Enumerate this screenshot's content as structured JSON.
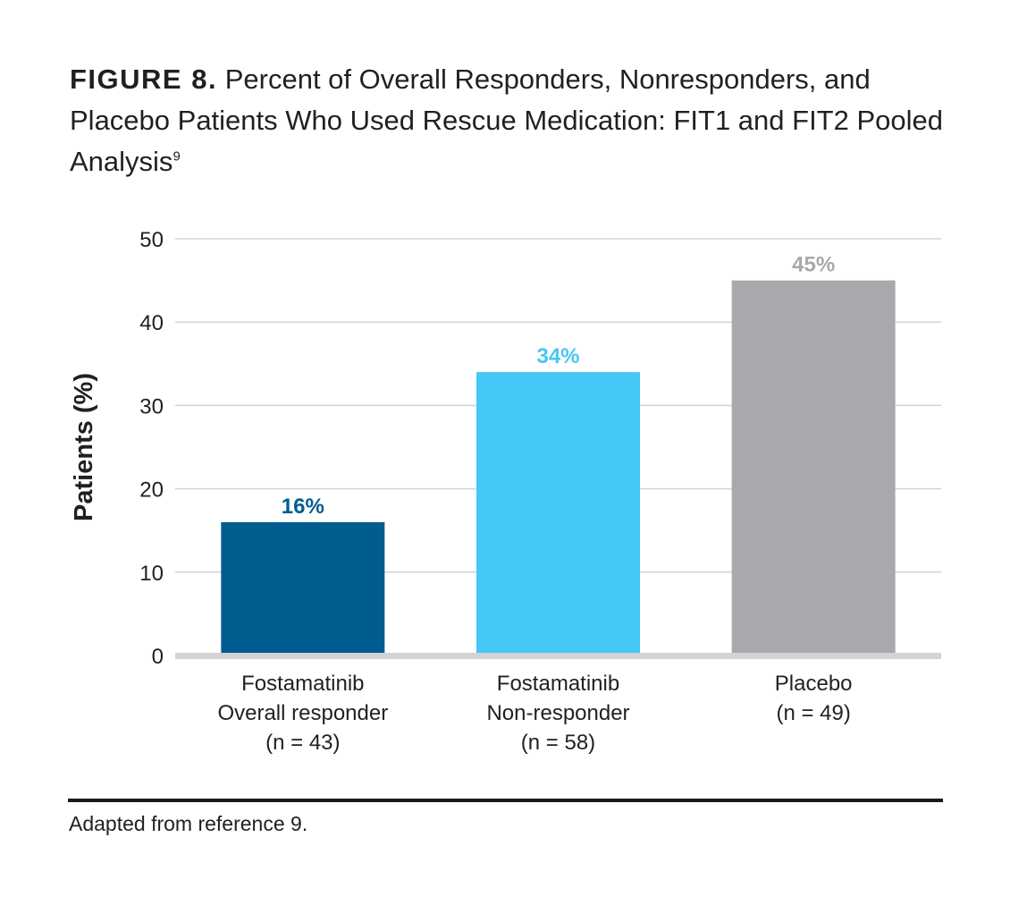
{
  "figure": {
    "label": "FIGURE 8.",
    "title": "Percent of Overall Responders, Nonresponders, and Placebo Patients Who Used Rescue Medication: FIT1 and FIT2 Pooled Analysis",
    "reference_mark": "9"
  },
  "source": "Adapted from reference 9.",
  "colors": {
    "responder": "#005b8f",
    "nonresponder": "#44c8f5",
    "placebo": "#a7a9ac",
    "grid": "#d1d3d4",
    "baseline": "#d1d3d4",
    "text": "#231f20"
  },
  "chart_data": {
    "type": "bar",
    "ylabel": "Patients (%)",
    "xlabel": "",
    "ylim": [
      0,
      50
    ],
    "yticks": [
      0,
      10,
      20,
      30,
      40,
      50
    ],
    "grid": true,
    "categories": [
      [
        "Fostamatinib",
        "Overall responder",
        "(n = 43)"
      ],
      [
        "Fostamatinib",
        "Non-responder",
        "(n = 58)"
      ],
      [
        "Placebo",
        "(n = 49)"
      ]
    ],
    "values": [
      16,
      34,
      45
    ],
    "data_labels": [
      "16%",
      "34%",
      "45%"
    ],
    "bar_colors": [
      "#005b8f",
      "#44c8f5",
      "#a7a9ac"
    ]
  }
}
